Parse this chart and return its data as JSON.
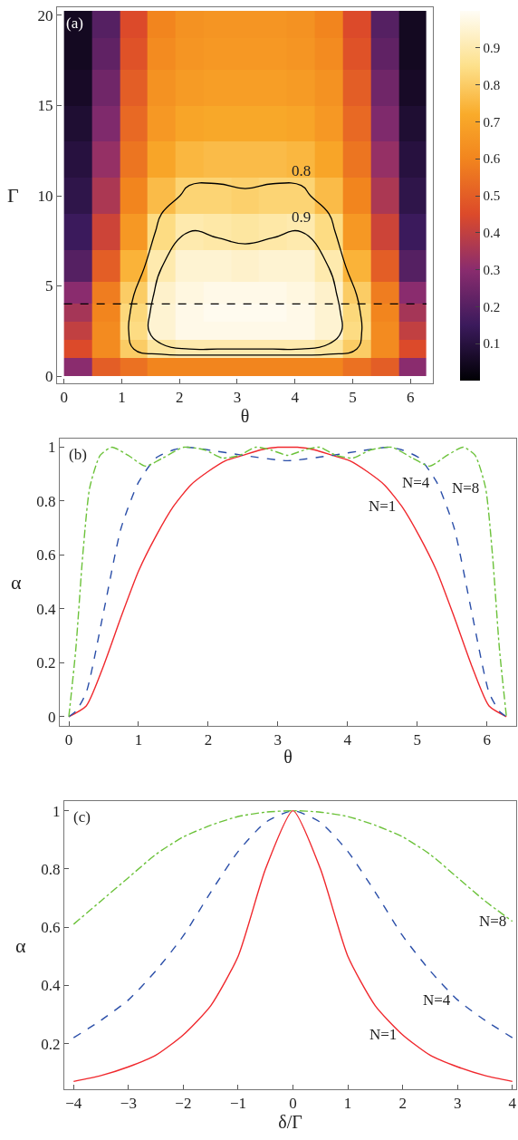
{
  "chart_data": [
    {
      "type": "heatmap",
      "xlabel": "θ",
      "ylabel": "Γ",
      "x": [
        0.24,
        0.72,
        1.21,
        1.69,
        2.17,
        2.66,
        3.14,
        3.62,
        4.11,
        4.59,
        5.07,
        5.56,
        6.04
      ],
      "y": [
        19.5,
        18,
        16,
        14,
        12,
        10,
        8,
        6,
        4.5,
        3.5,
        2.5,
        1.5,
        0.5
      ],
      "cells": [
        [
          0.05,
          0.2,
          0.45,
          0.6,
          0.64,
          0.65,
          0.65,
          0.65,
          0.64,
          0.6,
          0.45,
          0.2,
          0.05
        ],
        [
          0.05,
          0.22,
          0.47,
          0.62,
          0.65,
          0.66,
          0.66,
          0.66,
          0.65,
          0.62,
          0.47,
          0.22,
          0.05
        ],
        [
          0.06,
          0.25,
          0.5,
          0.64,
          0.67,
          0.68,
          0.68,
          0.68,
          0.67,
          0.64,
          0.5,
          0.25,
          0.06
        ],
        [
          0.08,
          0.28,
          0.53,
          0.66,
          0.7,
          0.71,
          0.71,
          0.71,
          0.7,
          0.66,
          0.53,
          0.28,
          0.08
        ],
        [
          0.1,
          0.32,
          0.56,
          0.7,
          0.75,
          0.76,
          0.76,
          0.76,
          0.75,
          0.7,
          0.56,
          0.32,
          0.1
        ],
        [
          0.12,
          0.36,
          0.6,
          0.76,
          0.82,
          0.82,
          0.81,
          0.82,
          0.82,
          0.76,
          0.6,
          0.36,
          0.12
        ],
        [
          0.15,
          0.42,
          0.66,
          0.84,
          0.9,
          0.89,
          0.88,
          0.89,
          0.9,
          0.84,
          0.66,
          0.42,
          0.15
        ],
        [
          0.2,
          0.5,
          0.74,
          0.9,
          0.95,
          0.95,
          0.94,
          0.95,
          0.95,
          0.9,
          0.74,
          0.5,
          0.2
        ],
        [
          0.3,
          0.58,
          0.8,
          0.94,
          0.97,
          0.98,
          0.98,
          0.98,
          0.97,
          0.94,
          0.8,
          0.58,
          0.3
        ],
        [
          0.35,
          0.6,
          0.83,
          0.95,
          0.98,
          0.99,
          0.99,
          0.99,
          0.98,
          0.95,
          0.83,
          0.6,
          0.35
        ],
        [
          0.4,
          0.62,
          0.84,
          0.95,
          0.98,
          0.98,
          0.98,
          0.98,
          0.98,
          0.95,
          0.84,
          0.62,
          0.4
        ],
        [
          0.45,
          0.62,
          0.8,
          0.88,
          0.9,
          0.9,
          0.9,
          0.9,
          0.9,
          0.88,
          0.8,
          0.62,
          0.45
        ],
        [
          0.3,
          0.5,
          0.55,
          0.6,
          0.6,
          0.6,
          0.6,
          0.6,
          0.6,
          0.6,
          0.55,
          0.5,
          0.3
        ]
      ],
      "clim": [
        0,
        1
      ],
      "cticks": [
        0.1,
        0.2,
        0.3,
        0.4,
        0.5,
        0.6,
        0.7,
        0.8,
        0.9
      ],
      "xlim": [
        -0.12,
        6.39
      ],
      "xticks": [
        0,
        1,
        2,
        3,
        4,
        5,
        6
      ],
      "ylim": [
        -0.4,
        20.45
      ],
      "yticks": [
        0,
        5,
        10,
        15,
        20
      ],
      "ref_lines": [
        {
          "axis": "y",
          "value": 4,
          "color": "#000000",
          "line_style": "dashed"
        }
      ],
      "annotations": [
        "(a)",
        "0.8",
        "0.9"
      ]
    },
    {
      "type": "line",
      "xlabel": "θ",
      "ylabel": "α",
      "xlim": [
        -0.13,
        6.42
      ],
      "xticks": [
        0,
        1,
        2,
        3,
        4,
        5,
        6
      ],
      "ylim": [
        -0.034,
        1.032
      ],
      "yticks": [
        0,
        0.2,
        0.4,
        0.6,
        0.8,
        1
      ],
      "series": [
        {
          "color": "#f0282d",
          "line_style": "solid",
          "x": [
            0,
            0.25,
            0.5,
            0.75,
            1,
            1.25,
            1.5,
            1.75,
            2,
            2.25,
            2.5,
            2.75,
            3,
            3.14,
            3.28,
            3.53,
            3.78,
            4.03,
            4.28,
            4.53,
            4.78,
            5.03,
            5.28,
            5.53,
            5.78,
            6.03,
            6.28
          ],
          "values": [
            0,
            0.04,
            0.19,
            0.37,
            0.54,
            0.67,
            0.78,
            0.86,
            0.91,
            0.95,
            0.97,
            0.99,
            1,
            1,
            1,
            0.99,
            0.97,
            0.95,
            0.91,
            0.86,
            0.78,
            0.67,
            0.54,
            0.37,
            0.19,
            0.04,
            0
          ]
        },
        {
          "color": "#2a4ea8",
          "line_style": "dashed",
          "x": [
            0,
            0.1,
            0.25,
            0.5,
            0.75,
            1,
            1.25,
            1.5,
            1.7,
            2,
            2.5,
            3.14,
            3.78,
            4.28,
            4.58,
            4.78,
            5.03,
            5.28,
            5.53,
            5.78,
            6.03,
            6.18,
            6.28
          ],
          "values": [
            0,
            0.02,
            0.09,
            0.39,
            0.7,
            0.87,
            0.96,
            0.99,
            1,
            0.99,
            0.97,
            0.95,
            0.97,
            0.99,
            1,
            0.99,
            0.96,
            0.87,
            0.7,
            0.39,
            0.09,
            0.02,
            0
          ]
        },
        {
          "color": "#6cc23a",
          "line_style": "dotted",
          "x": [
            0,
            0.1,
            0.2,
            0.3,
            0.45,
            0.62,
            0.85,
            1.1,
            1.35,
            1.65,
            1.95,
            2.2,
            2.45,
            2.68,
            2.9,
            3.14,
            3.38,
            3.6,
            3.83,
            4.08,
            4.33,
            4.63,
            4.93,
            5.18,
            5.43,
            5.66,
            5.83,
            5.98,
            6.08,
            6.18,
            6.28
          ],
          "values": [
            0,
            0.25,
            0.6,
            0.85,
            0.97,
            1,
            0.97,
            0.93,
            0.96,
            1,
            0.99,
            0.96,
            0.97,
            1,
            0.99,
            0.97,
            0.99,
            1,
            0.97,
            0.96,
            0.99,
            1,
            0.96,
            0.93,
            0.97,
            1,
            0.97,
            0.85,
            0.6,
            0.25,
            0
          ]
        }
      ],
      "annotations": [
        "(b)",
        {
          "text": "N=8",
          "x": 5.98,
          "y": 0.85
        },
        {
          "text": "N=4",
          "x": 5.28,
          "y": 0.87
        },
        {
          "text": "N=1",
          "x": 4.78,
          "y": 0.78
        }
      ]
    },
    {
      "type": "line",
      "xlabel": "δ/Γ",
      "ylabel": "α",
      "xlim": [
        -4.17,
        4.07
      ],
      "xticks": [
        {
          "value": -4,
          "label": "−4"
        },
        {
          "value": -3,
          "label": "−3"
        },
        {
          "value": -2,
          "label": "−2"
        },
        {
          "value": -1,
          "label": "−1"
        },
        0,
        1,
        2,
        3,
        4
      ],
      "ylim": [
        0.043,
        1.033
      ],
      "yticks": [
        0.2,
        0.4,
        0.6,
        0.8,
        1
      ],
      "series": [
        {
          "color": "#f0282d",
          "line_style": "solid",
          "x": [
            -4,
            -3.5,
            -3,
            -2.5,
            -2,
            -1.5,
            -1,
            -0.5,
            0,
            0.5,
            1,
            1.5,
            2,
            2.5,
            3,
            3.5,
            4
          ],
          "values": [
            0.07,
            0.09,
            0.12,
            0.16,
            0.23,
            0.33,
            0.5,
            0.8,
            1,
            0.8,
            0.5,
            0.33,
            0.23,
            0.16,
            0.12,
            0.09,
            0.07
          ]
        },
        {
          "color": "#2a4ea8",
          "line_style": "dashed",
          "x": [
            -4,
            -3.5,
            -3,
            -2.5,
            -2,
            -1.5,
            -1,
            -0.5,
            0,
            0.5,
            1,
            1.5,
            2,
            2.5,
            3,
            3.5,
            4
          ],
          "values": [
            0.22,
            0.28,
            0.35,
            0.45,
            0.57,
            0.72,
            0.86,
            0.96,
            1,
            0.96,
            0.86,
            0.72,
            0.57,
            0.45,
            0.35,
            0.28,
            0.22
          ]
        },
        {
          "color": "#6cc23a",
          "line_style": "dotted",
          "x": [
            -4,
            -3.5,
            -3,
            -2.5,
            -2,
            -1.5,
            -1,
            -0.5,
            0,
            0.5,
            1,
            1.5,
            2,
            2.5,
            3,
            3.5,
            4
          ],
          "values": [
            0.61,
            0.69,
            0.77,
            0.85,
            0.91,
            0.95,
            0.98,
            0.995,
            1,
            0.995,
            0.98,
            0.95,
            0.91,
            0.85,
            0.77,
            0.69,
            0.62
          ]
        }
      ],
      "annotations": [
        "(c)",
        {
          "text": "N=8",
          "x": 4,
          "y": 0.62
        },
        {
          "text": "N=4",
          "x": 3,
          "y": 0.35
        },
        {
          "text": "N=1",
          "x": 2,
          "y": 0.23
        }
      ]
    }
  ]
}
